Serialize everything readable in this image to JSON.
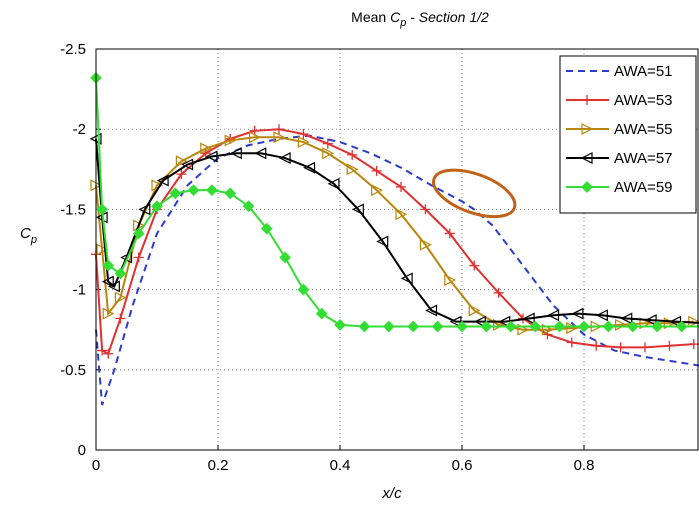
{
  "chart_data": {
    "type": "line",
    "title_prefix": "Mean ",
    "title_symbol": "C",
    "title_symbol_sub": "p",
    "title_suffix": " - Section 1/2",
    "xlabel": "x/c",
    "ylabel_symbol": "C",
    "ylabel_sub": "p",
    "xlim": [
      0,
      1.0
    ],
    "ylim": [
      0,
      -2.5
    ],
    "y_inverted": true,
    "grid": true,
    "legend_position": "top-right",
    "x_ticks": [
      {
        "value": 0,
        "label": "0"
      },
      {
        "value": 0.2,
        "label": "0.2"
      },
      {
        "value": 0.4,
        "label": "0.4"
      },
      {
        "value": 0.6,
        "label": "0.6"
      },
      {
        "value": 0.8,
        "label": "0.8"
      }
    ],
    "y_ticks": [
      {
        "value": 0,
        "label": "0"
      },
      {
        "value": -0.5,
        "label": "-0.5"
      },
      {
        "value": -1,
        "label": "-1"
      },
      {
        "value": -1.5,
        "label": "-1.5"
      },
      {
        "value": -2,
        "label": "-2"
      },
      {
        "value": -2.5,
        "label": "-2.5"
      }
    ],
    "series": [
      {
        "name": "AWA=51",
        "color": "#2b3ccc",
        "dash": "7,5",
        "marker": "none",
        "x": [
          0,
          0.01,
          0.03,
          0.06,
          0.1,
          0.15,
          0.2,
          0.25,
          0.3,
          0.35,
          0.4,
          0.45,
          0.5,
          0.55,
          0.6,
          0.62,
          0.65,
          0.7,
          0.75,
          0.8,
          0.85,
          0.9,
          0.95,
          1.0
        ],
        "y": [
          -0.75,
          -0.28,
          -0.5,
          -0.9,
          -1.35,
          -1.65,
          -1.82,
          -1.9,
          -1.94,
          -1.96,
          -1.92,
          -1.85,
          -1.76,
          -1.65,
          -1.55,
          -1.5,
          -1.4,
          -1.15,
          -0.9,
          -0.72,
          -0.62,
          -0.58,
          -0.55,
          -0.52
        ]
      },
      {
        "name": "AWA=53",
        "color": "#e03030",
        "dash": "",
        "marker": "plus",
        "x": [
          0,
          0.01,
          0.02,
          0.04,
          0.07,
          0.1,
          0.14,
          0.18,
          0.22,
          0.26,
          0.3,
          0.34,
          0.38,
          0.42,
          0.46,
          0.5,
          0.54,
          0.58,
          0.62,
          0.66,
          0.7,
          0.74,
          0.78,
          0.82,
          0.86,
          0.9,
          0.94,
          0.98
        ],
        "y": [
          -1.22,
          -0.62,
          -0.6,
          -0.82,
          -1.2,
          -1.5,
          -1.72,
          -1.85,
          -1.94,
          -1.99,
          -2.0,
          -1.97,
          -1.91,
          -1.84,
          -1.74,
          -1.64,
          -1.5,
          -1.35,
          -1.15,
          -0.98,
          -0.82,
          -0.72,
          -0.67,
          -0.65,
          -0.64,
          -0.64,
          -0.65,
          -0.66
        ]
      },
      {
        "name": "AWA=55",
        "color": "#b8860b",
        "dash": "",
        "marker": "triangle-right",
        "x": [
          0,
          0.01,
          0.02,
          0.04,
          0.07,
          0.1,
          0.14,
          0.18,
          0.22,
          0.26,
          0.3,
          0.34,
          0.38,
          0.42,
          0.46,
          0.5,
          0.54,
          0.58,
          0.62,
          0.66,
          0.7,
          0.74,
          0.78,
          0.82,
          0.86,
          0.9,
          0.94,
          0.98
        ],
        "y": [
          -1.65,
          -1.25,
          -0.85,
          -0.95,
          -1.4,
          -1.65,
          -1.8,
          -1.88,
          -1.93,
          -1.95,
          -1.95,
          -1.92,
          -1.85,
          -1.75,
          -1.62,
          -1.47,
          -1.28,
          -1.06,
          -0.87,
          -0.78,
          -0.75,
          -0.75,
          -0.76,
          -0.77,
          -0.78,
          -0.79,
          -0.79,
          -0.8
        ]
      },
      {
        "name": "AWA=57",
        "color": "#000000",
        "dash": "",
        "marker": "triangle-left",
        "x": [
          0,
          0.01,
          0.02,
          0.03,
          0.05,
          0.08,
          0.11,
          0.15,
          0.19,
          0.23,
          0.27,
          0.31,
          0.35,
          0.39,
          0.43,
          0.47,
          0.51,
          0.55,
          0.59,
          0.63,
          0.67,
          0.71,
          0.75,
          0.79,
          0.83,
          0.87,
          0.91,
          0.95,
          1.0
        ],
        "y": [
          -1.94,
          -1.45,
          -1.05,
          -1.02,
          -1.2,
          -1.5,
          -1.68,
          -1.78,
          -1.83,
          -1.85,
          -1.85,
          -1.82,
          -1.76,
          -1.66,
          -1.5,
          -1.3,
          -1.07,
          -0.87,
          -0.8,
          -0.8,
          -0.8,
          -0.82,
          -0.84,
          -0.85,
          -0.84,
          -0.82,
          -0.81,
          -0.8,
          -0.79
        ]
      },
      {
        "name": "AWA=59",
        "color": "#33dd33",
        "dash": "",
        "marker": "diamond",
        "x": [
          0,
          0.01,
          0.02,
          0.04,
          0.07,
          0.1,
          0.13,
          0.16,
          0.19,
          0.22,
          0.25,
          0.28,
          0.31,
          0.34,
          0.37,
          0.4,
          0.44,
          0.48,
          0.52,
          0.56,
          0.6,
          0.64,
          0.68,
          0.72,
          0.76,
          0.8,
          0.84,
          0.88,
          0.92,
          0.96,
          1.0
        ],
        "y": [
          -2.32,
          -1.5,
          -1.15,
          -1.1,
          -1.35,
          -1.52,
          -1.6,
          -1.62,
          -1.62,
          -1.6,
          -1.52,
          -1.38,
          -1.2,
          -1.0,
          -0.85,
          -0.78,
          -0.77,
          -0.77,
          -0.77,
          -0.77,
          -0.77,
          -0.77,
          -0.77,
          -0.77,
          -0.77,
          -0.77,
          -0.77,
          -0.77,
          -0.77,
          -0.77,
          -0.77
        ]
      }
    ],
    "annotations": [
      {
        "type": "ellipse",
        "color": "#c0621a",
        "cx": 0.62,
        "cy": -1.6,
        "rx": 0.07,
        "ry": 0.12
      }
    ]
  }
}
